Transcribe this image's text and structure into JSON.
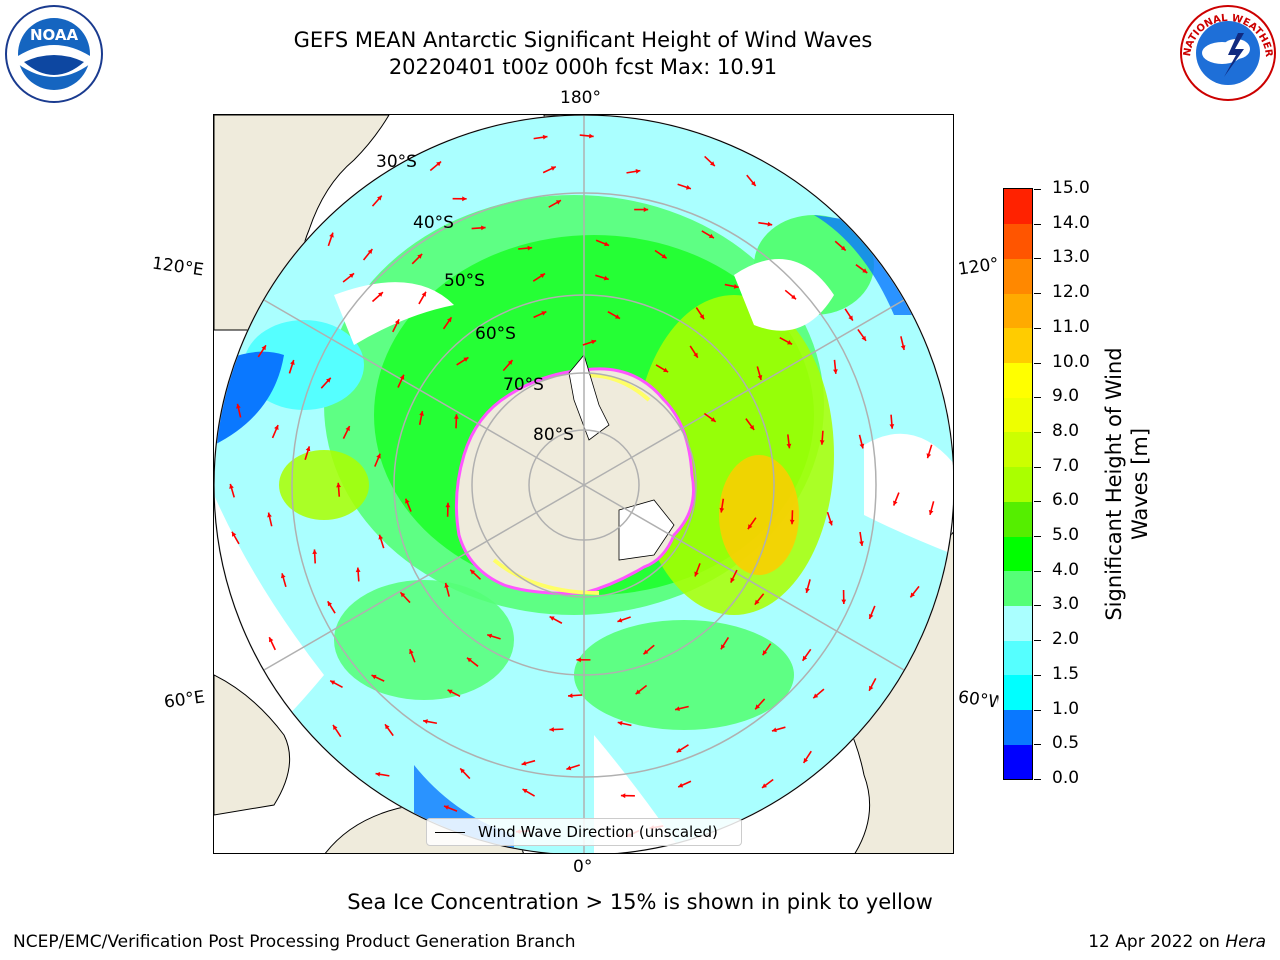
{
  "title": {
    "line1": "GEFS MEAN Antarctic Significant Height of Wind Waves",
    "line2": "20220401 t00z 000h fcst   Max: 10.91"
  },
  "map": {
    "projection": "south-polar-stereographic",
    "lon_labels": {
      "top": "180°",
      "bottom": "0°",
      "upper_left": "120°E",
      "upper_right": "120°",
      "lower_left": "60°E",
      "lower_right": "60°W"
    },
    "lat_labels": [
      "30°S",
      "40°S",
      "50°S",
      "60°S",
      "70°S",
      "80°S"
    ],
    "land_color": "#efebdc",
    "ice_colors": [
      "#ff55ff",
      "#ffff66",
      "#ffaa33"
    ],
    "legend_label": "Wind Wave Direction (unscaled)",
    "arrow_color": "#ff0000"
  },
  "colorbar": {
    "label": "Significant Height of Wind Waves [m]",
    "label_line1": "Significant Height of Wind",
    "label_line2": "Waves [m]",
    "ticks": [
      "0.0",
      "0.5",
      "1.0",
      "1.5",
      "2.0",
      "3.0",
      "4.0",
      "5.0",
      "6.0",
      "7.0",
      "8.0",
      "9.0",
      "10.0",
      "11.0",
      "12.0",
      "13.0",
      "14.0",
      "15.0"
    ],
    "colors": [
      "#0000ff",
      "#0a78ff",
      "#00ffff",
      "#55ffff",
      "#aaffff",
      "#55ff77",
      "#00ff00",
      "#55ee00",
      "#aaff00",
      "#ccff00",
      "#eeff00",
      "#ffff00",
      "#ffcc00",
      "#ffaa00",
      "#ff8800",
      "#ff5500",
      "#ff2200"
    ]
  },
  "subtitle": "Sea Ice Concentration > 15% is shown in pink to yellow",
  "footer": {
    "left": "NCEP/EMC/Verification Post Processing Product Generation Branch",
    "right_prefix": "12 Apr 2022 on ",
    "right_host": "Hera"
  },
  "logos": {
    "left": "NOAA",
    "right": "NATIONAL WEATHER SERVICE"
  }
}
